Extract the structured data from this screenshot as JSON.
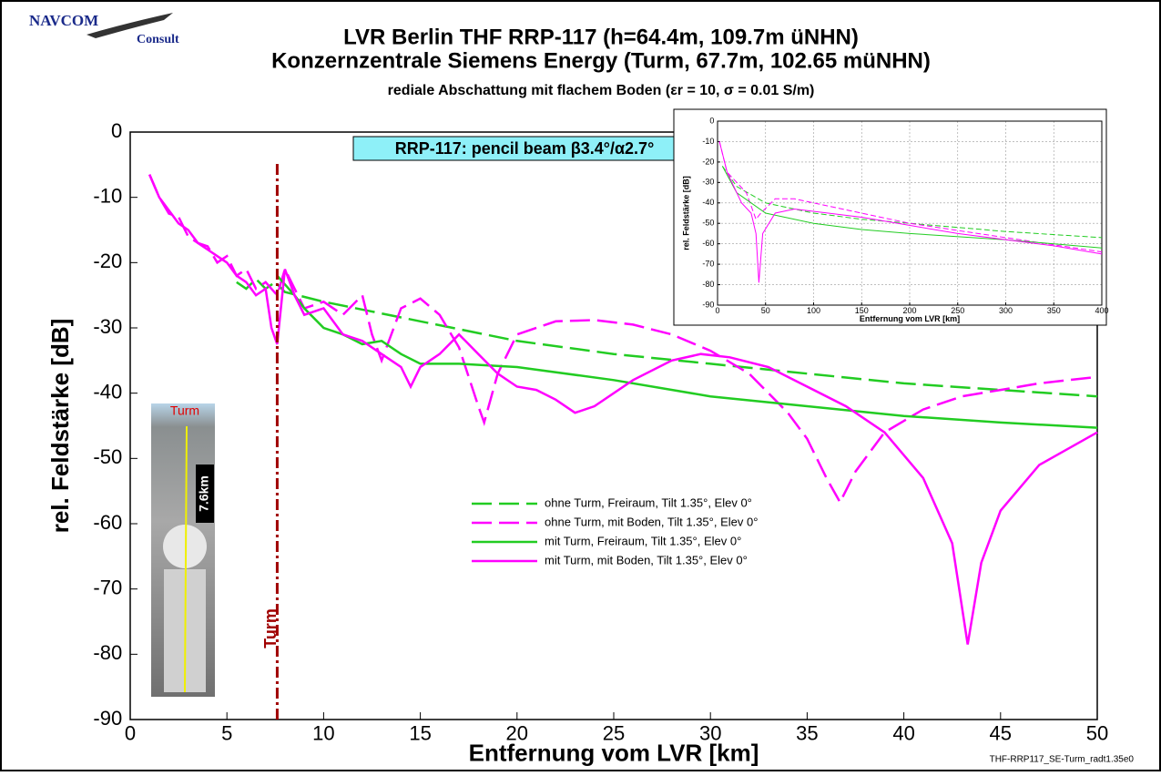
{
  "chart_data": [
    {
      "type": "line",
      "logo": [
        "NAVCOM",
        "Consult"
      ],
      "title": [
        "LVR  Berlin THF RRP-117 (h=64.4m, 109.7m üNHN)",
        "Konzernzentrale Siemens Energy (Turm, 67.7m, 102.65 müNHN)"
      ],
      "subtitle": "rediale Abschattung mit flachem Boden (εr = 10,  σ = 0.01 S/m)",
      "annotation": "RRP-117: pencil beam β3.4°/α2.7°",
      "marker": {
        "x": 7.6,
        "label": "Turm",
        "color": "#a00000"
      },
      "photo_labels": [
        "Turm",
        "7.6km"
      ],
      "footer": "THF-RRP117_SE-Turm_radt1.35e0",
      "x_label": "Entfernung vom LVR [km]",
      "y_label": "rel. Feldstärke [dB]",
      "xlim": [
        0,
        50
      ],
      "ylim": [
        -90,
        0
      ],
      "xticks": [
        0,
        5,
        10,
        15,
        20,
        25,
        30,
        35,
        40,
        45,
        50
      ],
      "yticks": [
        -90,
        -80,
        -70,
        -60,
        -50,
        -40,
        -30,
        -20,
        -10,
        0
      ],
      "grid": false,
      "series": [
        {
          "name": "ohne Turm, Freiraum, Tilt 1.35°, Elev 0°",
          "color": "#22cc22",
          "dash": true,
          "x": [
            5.5,
            6,
            6.5,
            7,
            7.5,
            8,
            10,
            15,
            20,
            25,
            30,
            35,
            40,
            45,
            50
          ],
          "values": [
            -23,
            -24,
            -22.5,
            -24,
            -23,
            -24.5,
            -26,
            -29,
            -32,
            -34,
            -35.5,
            -37,
            -38.5,
            -39.5,
            -40.5
          ]
        },
        {
          "name": "ohne Turm, mit Boden, Tilt 1.35°, Elev 0°",
          "color": "#ff00ff",
          "dash": true,
          "x": [
            1,
            1.5,
            2,
            2.5,
            3,
            3.5,
            4,
            4.5,
            5,
            5.5,
            6,
            6.5,
            7,
            7.6,
            8,
            9,
            10,
            11,
            12,
            12.5,
            13,
            14,
            15,
            16,
            17,
            18,
            18.3,
            19,
            20,
            22,
            24,
            26,
            28,
            30,
            32,
            34,
            35,
            36,
            36.7,
            37.5,
            39,
            41,
            43,
            45,
            47,
            50
          ],
          "values": [
            -6.5,
            -10,
            -12.5,
            -13,
            -16,
            -17,
            -17.5,
            -20,
            -19,
            -22,
            -21,
            -24,
            -23,
            -25,
            -21,
            -27,
            -26,
            -28,
            -25,
            -31,
            -35,
            -27,
            -25.5,
            -28,
            -33,
            -42,
            -44.5,
            -37,
            -31,
            -29,
            -28.8,
            -29.5,
            -31,
            -33.5,
            -37,
            -43,
            -47,
            -53,
            -56.7,
            -52,
            -46,
            -42.5,
            -40.5,
            -39.5,
            -38.5,
            -37.5
          ]
        },
        {
          "name": "mit Turm, Freiraum, Tilt 1.35°, Elev 0°",
          "color": "#22cc22",
          "dash": false,
          "x": [
            7.6,
            8.5,
            9,
            10,
            11,
            12,
            13,
            14,
            15,
            17,
            20,
            25,
            30,
            35,
            40,
            45,
            50
          ],
          "values": [
            -22,
            -25,
            -27,
            -30,
            -31,
            -32.5,
            -32,
            -34,
            -35.5,
            -35.5,
            -36,
            -38,
            -40.5,
            -42,
            -43.5,
            -44.5,
            -45.3
          ]
        },
        {
          "name": "mit Turm, mit Boden, Tilt 1.35°, Elev 0°",
          "color": "#ff00ff",
          "dash": false,
          "x": [
            1,
            1.5,
            2,
            2.5,
            3,
            3.5,
            4,
            4.5,
            5,
            5.5,
            6,
            6.5,
            7,
            7.3,
            7.6,
            8,
            8.5,
            9,
            10,
            11,
            12,
            13,
            14,
            14.5,
            15,
            16,
            17,
            18,
            19,
            20,
            21,
            22,
            23,
            24,
            26,
            28,
            29.5,
            31,
            33,
            35,
            37,
            39,
            41,
            42.5,
            43.3,
            44,
            45,
            47,
            50
          ],
          "values": [
            -6.5,
            -10,
            -12,
            -14,
            -15,
            -17,
            -18,
            -19,
            -20,
            -22,
            -23,
            -25,
            -24,
            -30,
            -32.5,
            -21,
            -25,
            -28,
            -27,
            -31,
            -32,
            -34,
            -36,
            -39,
            -36,
            -34,
            -31,
            -34,
            -37,
            -39,
            -39.5,
            -41,
            -43,
            -42,
            -38,
            -35,
            -34,
            -34.5,
            -36,
            -39,
            -42,
            -46,
            -53,
            -63,
            -78.5,
            -66,
            -58,
            -51,
            -46
          ]
        }
      ]
    },
    {
      "type": "line",
      "x_label": "Entfernung vom LVR [km]",
      "y_label": "rel. Feldstärke [dB]",
      "xlim": [
        0,
        400
      ],
      "ylim": [
        -90,
        0
      ],
      "xticks": [
        0,
        50,
        100,
        150,
        200,
        250,
        300,
        350,
        400
      ],
      "yticks": [
        -90,
        -80,
        -70,
        -60,
        -50,
        -40,
        -30,
        -20,
        -10,
        0
      ],
      "grid": true,
      "series": [
        {
          "color": "#22cc22",
          "dash": true,
          "x": [
            5,
            20,
            50,
            100,
            150,
            200,
            250,
            300,
            400
          ],
          "values": [
            -22,
            -32,
            -40,
            -45,
            -48,
            -50,
            -52,
            -54,
            -57
          ]
        },
        {
          "color": "#ff00ff",
          "dash": true,
          "x": [
            2,
            10,
            20,
            30,
            40,
            45,
            60,
            80,
            120,
            200,
            300,
            400
          ],
          "values": [
            -10,
            -25,
            -30,
            -35,
            -48,
            -45,
            -38,
            -38,
            -42,
            -50,
            -57,
            -64
          ]
        },
        {
          "color": "#22cc22",
          "dash": false,
          "x": [
            5,
            20,
            50,
            100,
            150,
            200,
            300,
            400
          ],
          "values": [
            -22,
            -35,
            -45,
            -50,
            -53,
            -55,
            -58,
            -62
          ]
        },
        {
          "color": "#ff00ff",
          "dash": false,
          "x": [
            2,
            10,
            25,
            35,
            40,
            43,
            47,
            60,
            80,
            150,
            250,
            350,
            400
          ],
          "values": [
            -10,
            -25,
            -40,
            -45,
            -55,
            -79,
            -55,
            -45,
            -43,
            -47,
            -55,
            -61,
            -65
          ]
        }
      ]
    }
  ]
}
